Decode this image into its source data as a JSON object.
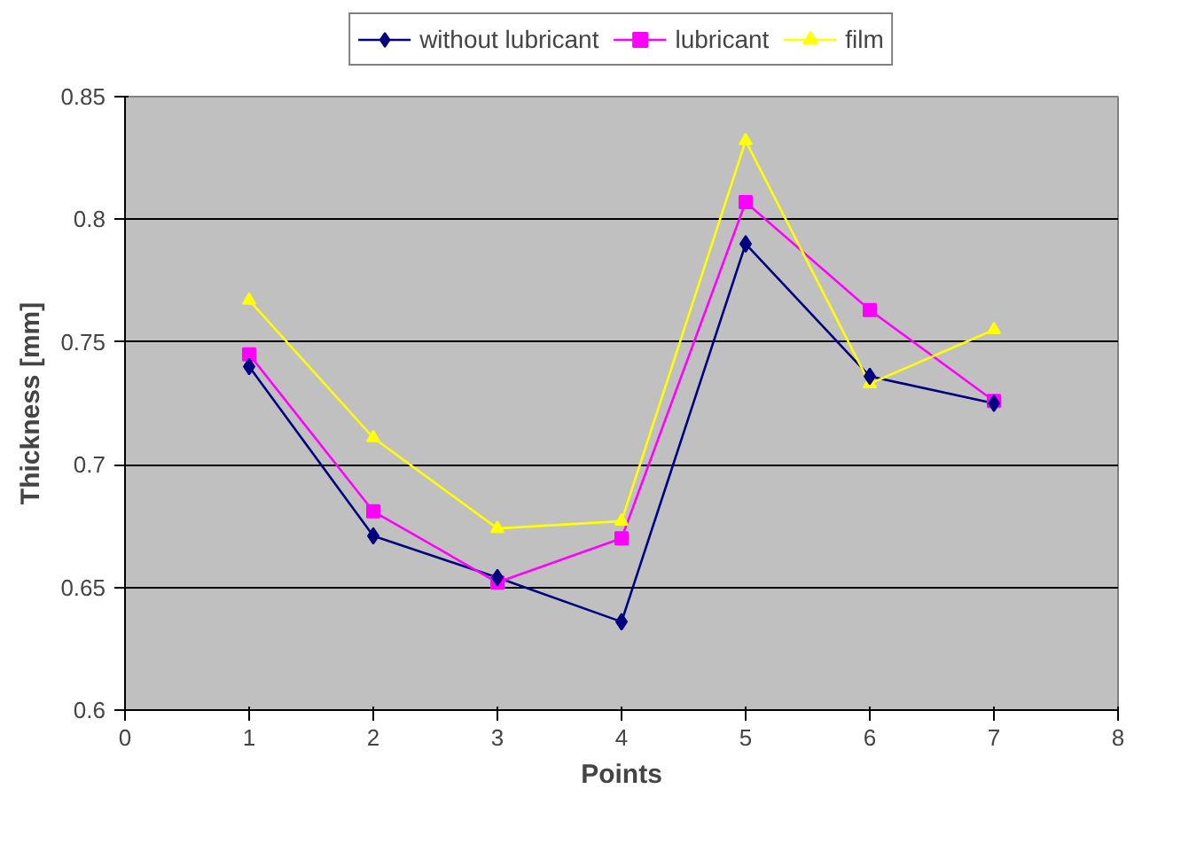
{
  "chart_data": {
    "type": "line",
    "xlabel": "Points",
    "ylabel": "Thickness [mm]",
    "x": [
      1,
      2,
      3,
      4,
      5,
      6,
      7
    ],
    "series": [
      {
        "name": "without lubricant",
        "color": "#000080",
        "marker": "diamond",
        "values": [
          0.74,
          0.671,
          0.654,
          0.636,
          0.79,
          0.736,
          0.725
        ]
      },
      {
        "name": "lubricant",
        "color": "#ff00ff",
        "marker": "square",
        "values": [
          0.745,
          0.681,
          0.652,
          0.67,
          0.807,
          0.763,
          0.726
        ]
      },
      {
        "name": "film",
        "color": "#ffff00",
        "marker": "triangle",
        "values": [
          0.767,
          0.711,
          0.674,
          0.677,
          0.832,
          0.733,
          0.755
        ]
      }
    ],
    "xlim": [
      0,
      8
    ],
    "xticks": [
      0,
      1,
      2,
      3,
      4,
      5,
      6,
      7,
      8
    ],
    "ylim": [
      0.6,
      0.85
    ],
    "yticks": [
      0.6,
      0.65,
      0.7,
      0.75,
      0.8,
      0.85
    ],
    "grid": "y",
    "legend": "top",
    "line_style": "solid"
  }
}
